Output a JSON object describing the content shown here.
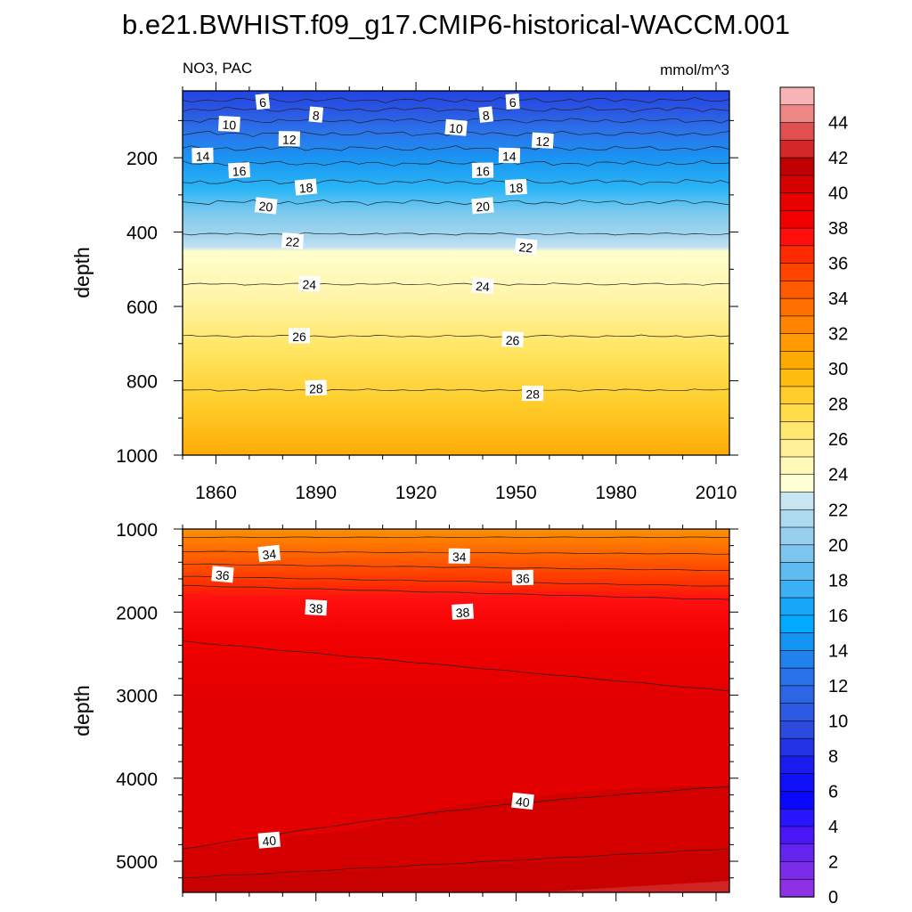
{
  "figure": {
    "title": "b.e21.BWHIST.f09_g17.CMIP6-historical-WACCM.001",
    "left_label": "NO3, PAC",
    "right_label": "mmol/m^3"
  },
  "chart_data": [
    {
      "type": "heatmap",
      "id": "upper",
      "variable": "NO3",
      "region": "PAC",
      "units": "mmol/m^3",
      "xlim": [
        1850,
        2014
      ],
      "ylim": [
        1000,
        20
      ],
      "ylabel": "depth",
      "xlabel": "",
      "x_ticks": [
        1860,
        1890,
        1920,
        1950,
        1980,
        2010
      ],
      "y_ticks": [
        200,
        400,
        600,
        800,
        1000
      ],
      "contour_interval": 2,
      "note_direction": "depth increases downward",
      "contour_depths": [
        {
          "level": 6,
          "depth": 45
        },
        {
          "level": 8,
          "depth": 70
        },
        {
          "level": 10,
          "depth": 100
        },
        {
          "level": 12,
          "depth": 135
        },
        {
          "level": 14,
          "depth": 175
        },
        {
          "level": 16,
          "depth": 215
        },
        {
          "level": 18,
          "depth": 265
        },
        {
          "level": 20,
          "depth": 320
        },
        {
          "level": 22,
          "depth": 405
        },
        {
          "level": 24,
          "depth": 540
        },
        {
          "level": 26,
          "depth": 680
        },
        {
          "level": 28,
          "depth": 825
        }
      ],
      "contour_labels": [
        {
          "text": "6",
          "x": 1874,
          "depth": 50
        },
        {
          "text": "8",
          "x": 1890,
          "depth": 85
        },
        {
          "text": "10",
          "x": 1864,
          "depth": 110
        },
        {
          "text": "12",
          "x": 1882,
          "depth": 150
        },
        {
          "text": "14",
          "x": 1856,
          "depth": 195
        },
        {
          "text": "16",
          "x": 1867,
          "depth": 235
        },
        {
          "text": "18",
          "x": 1887,
          "depth": 280
        },
        {
          "text": "20",
          "x": 1875,
          "depth": 330
        },
        {
          "text": "22",
          "x": 1883,
          "depth": 425
        },
        {
          "text": "24",
          "x": 1888,
          "depth": 540
        },
        {
          "text": "26",
          "x": 1885,
          "depth": 680
        },
        {
          "text": "28",
          "x": 1890,
          "depth": 820
        },
        {
          "text": "6",
          "x": 1949,
          "depth": 50
        },
        {
          "text": "8",
          "x": 1941,
          "depth": 85
        },
        {
          "text": "10",
          "x": 1932,
          "depth": 120
        },
        {
          "text": "12",
          "x": 1958,
          "depth": 155
        },
        {
          "text": "14",
          "x": 1948,
          "depth": 195
        },
        {
          "text": "16",
          "x": 1940,
          "depth": 235
        },
        {
          "text": "18",
          "x": 1950,
          "depth": 280
        },
        {
          "text": "20",
          "x": 1940,
          "depth": 330
        },
        {
          "text": "22",
          "x": 1953,
          "depth": 440
        },
        {
          "text": "24",
          "x": 1940,
          "depth": 545
        },
        {
          "text": "26",
          "x": 1949,
          "depth": 690
        },
        {
          "text": "28",
          "x": 1955,
          "depth": 835
        }
      ]
    },
    {
      "type": "heatmap",
      "id": "lower",
      "variable": "NO3",
      "region": "PAC",
      "units": "mmol/m^3",
      "xlim": [
        1850,
        2014
      ],
      "ylim": [
        5375,
        1000
      ],
      "ylabel": "depth",
      "xlabel": "",
      "y_ticks": [
        1000,
        2000,
        3000,
        4000,
        5000
      ],
      "contour_interval": 2,
      "note_direction": "depth increases downward",
      "contour_depths": [
        {
          "level": 32,
          "depth_start": 1100,
          "depth_end": 1100
        },
        {
          "level": 33,
          "depth_start": 1270,
          "depth_end": 1300
        },
        {
          "level": 34,
          "depth_start": 1420,
          "depth_end": 1500
        },
        {
          "level": 35,
          "depth_start": 1570,
          "depth_end": 1690
        },
        {
          "level": 36,
          "depth_start": 1680,
          "depth_end": 1850
        },
        {
          "level": 38,
          "depth_start": 2350,
          "depth_end": 2950
        },
        {
          "level": 40,
          "depth_start": 4850,
          "depth_end": 4100
        },
        {
          "level": 41,
          "depth_start": 5200,
          "depth_end": 4850
        }
      ],
      "contour_labels": [
        {
          "text": "34",
          "x": 1876,
          "depth": 1300
        },
        {
          "text": "36",
          "x": 1862,
          "depth": 1550
        },
        {
          "text": "38",
          "x": 1890,
          "depth": 1950
        },
        {
          "text": "34",
          "x": 1933,
          "depth": 1330
        },
        {
          "text": "36",
          "x": 1952,
          "depth": 1590
        },
        {
          "text": "38",
          "x": 1934,
          "depth": 2000
        },
        {
          "text": "40",
          "x": 1876,
          "depth": 4750
        },
        {
          "text": "40",
          "x": 1952,
          "depth": 4280
        }
      ]
    }
  ],
  "colorbar": {
    "labels": [
      "44",
      "42",
      "40",
      "38",
      "36",
      "34",
      "32",
      "30",
      "28",
      "26",
      "24",
      "22",
      "20",
      "18",
      "16",
      "14",
      "12",
      "10",
      "8",
      "6",
      "4",
      "2",
      "0"
    ],
    "colors_top_to_bottom": [
      "#F8B4B4",
      "#EE8686",
      "#E05050",
      "#D42828",
      "#C00000",
      "#D50000",
      "#E60000",
      "#F20000",
      "#FF0E0E",
      "#FF2A00",
      "#FF4400",
      "#FF5A00",
      "#FF7000",
      "#FF8500",
      "#FF9A00",
      "#FFAA00",
      "#FFBC10",
      "#FFCC2A",
      "#FFDC4A",
      "#FFE870",
      "#FFF098",
      "#FFF8B8",
      "#FFFFD4",
      "#C8E6F2",
      "#AEDAF0",
      "#96D0EE",
      "#7CC6EE",
      "#5FBCF0",
      "#3CB0F4",
      "#18A6F6",
      "#00AAFF",
      "#1494F2",
      "#2182EE",
      "#2A72EA",
      "#2C66E6",
      "#2D5AE2",
      "#2D4ADE",
      "#2432E6",
      "#1A1CEE",
      "#1010F6",
      "#0808FF",
      "#2814FF",
      "#4A16F6",
      "#6424EE",
      "#7A2CE8",
      "#8E30E4"
    ]
  }
}
